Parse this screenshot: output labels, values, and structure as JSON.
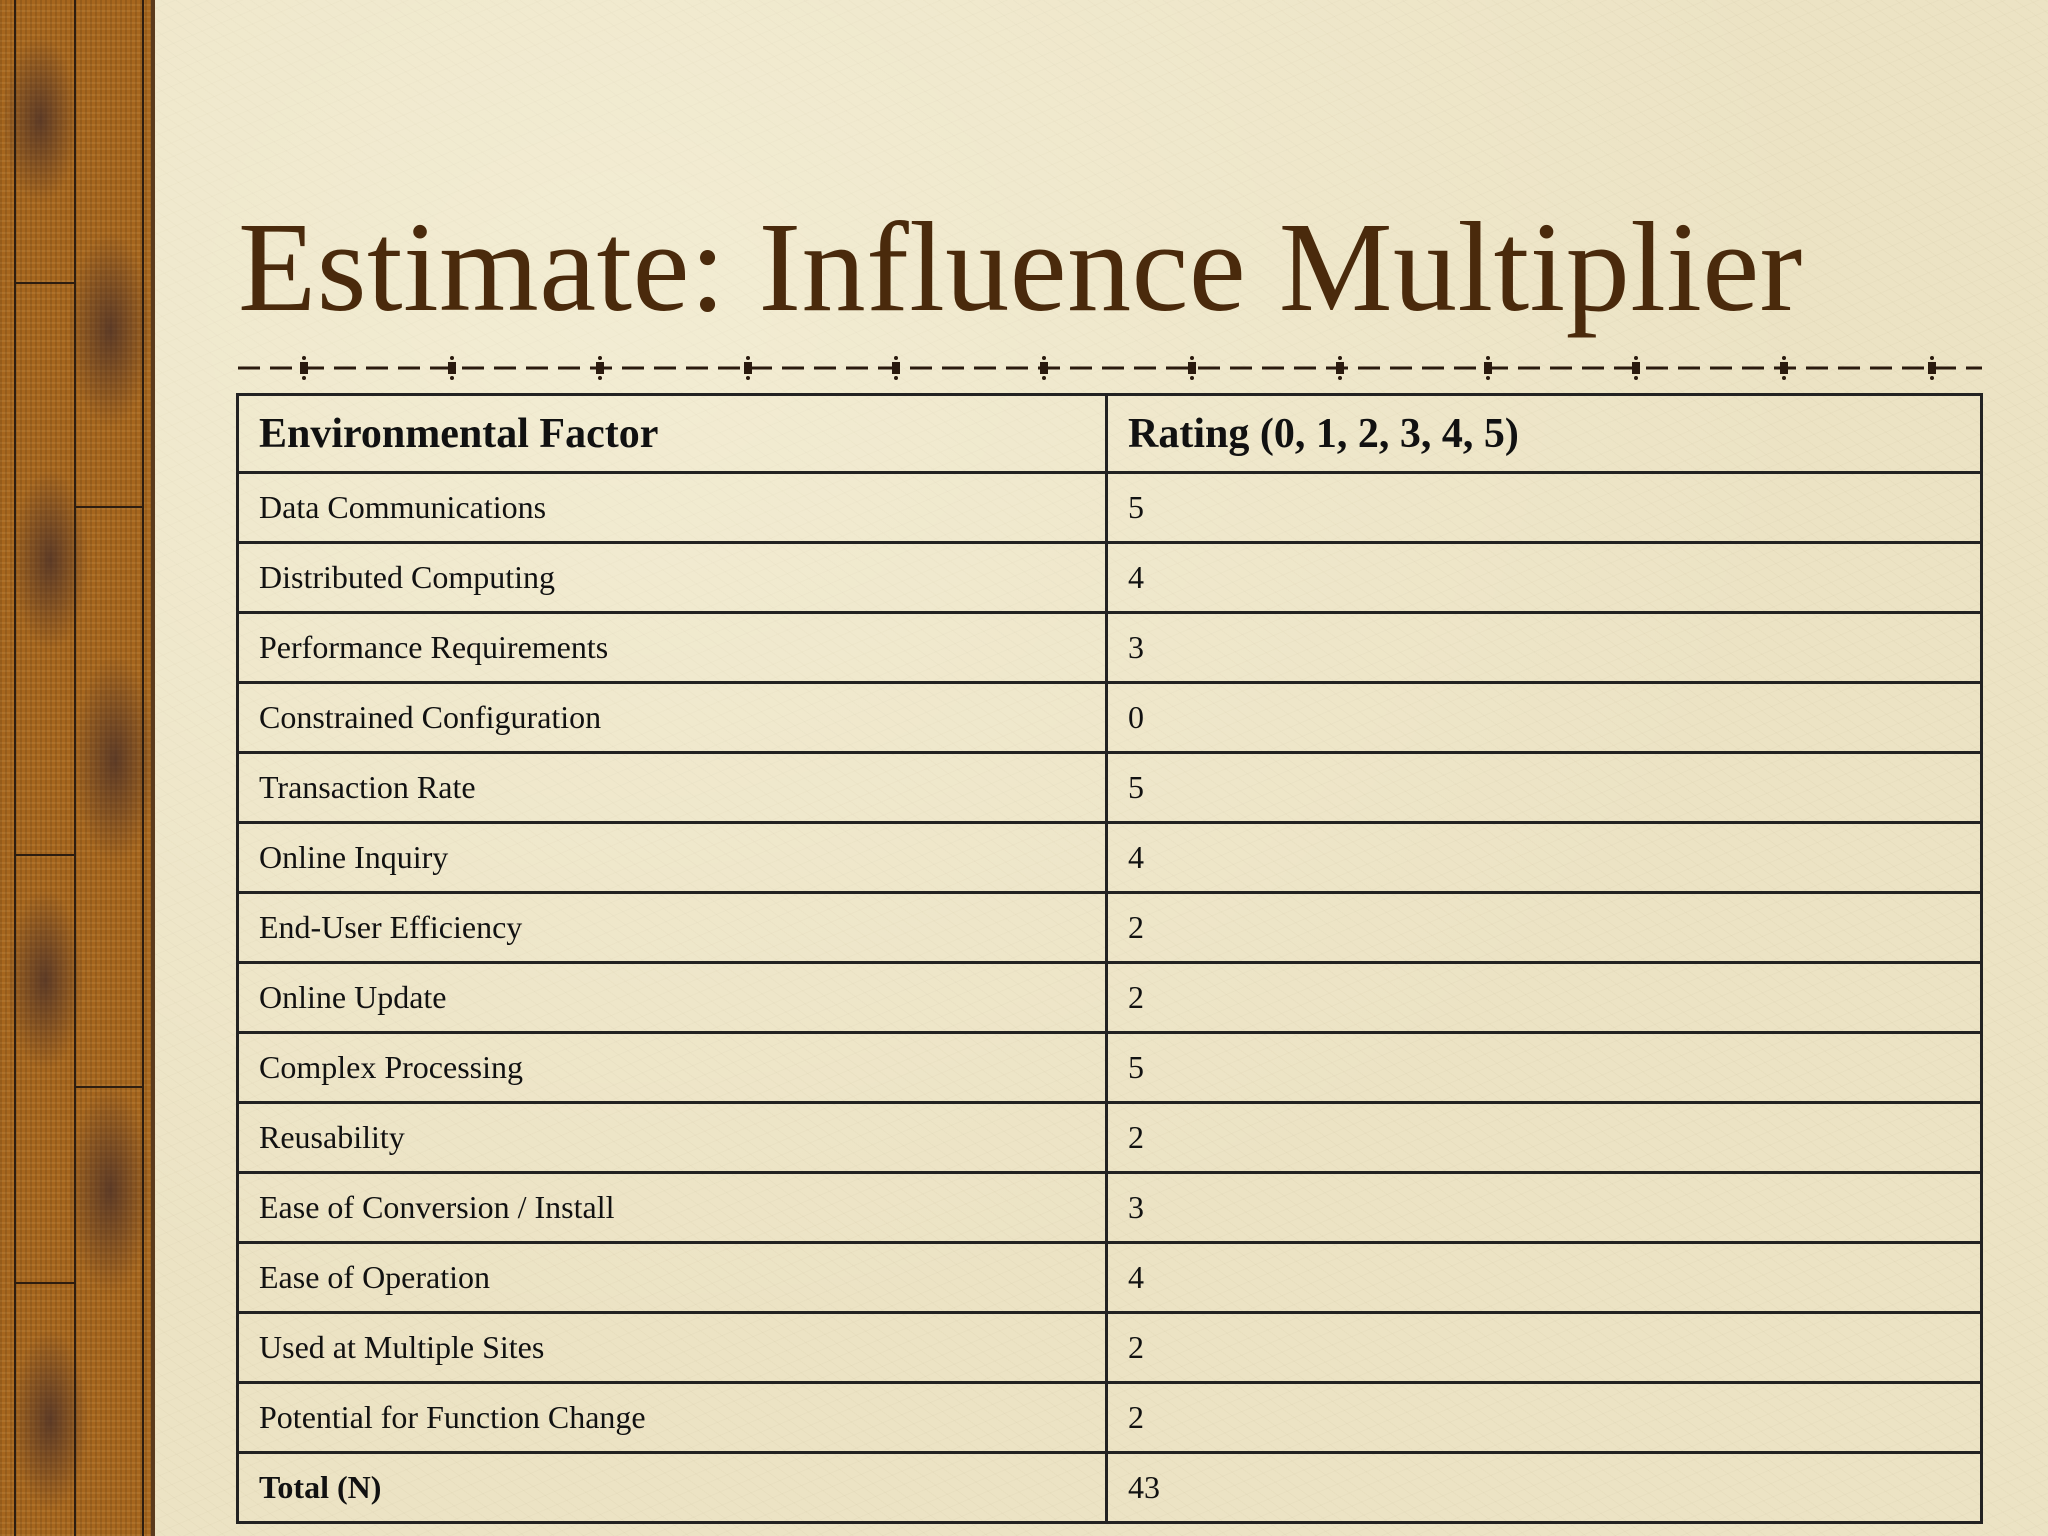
{
  "slide": {
    "title": "Estimate: Influence Multiplier"
  },
  "table": {
    "headers": [
      "Environmental Factor",
      "Rating (0, 1, 2, 3, 4, 5)"
    ],
    "rows": [
      {
        "factor": "Data Communications",
        "rating": "5"
      },
      {
        "factor": "Distributed Computing",
        "rating": "4"
      },
      {
        "factor": "Performance Requirements",
        "rating": "3"
      },
      {
        "factor": "Constrained Configuration",
        "rating": "0"
      },
      {
        "factor": "Transaction Rate",
        "rating": "5"
      },
      {
        "factor": "Online Inquiry",
        "rating": "4"
      },
      {
        "factor": "End-User Efficiency",
        "rating": "2"
      },
      {
        "factor": "Online Update",
        "rating": "2"
      },
      {
        "factor": "Complex Processing",
        "rating": "5"
      },
      {
        "factor": "Reusability",
        "rating": "2"
      },
      {
        "factor": "Ease of Conversion / Install",
        "rating": "3"
      },
      {
        "factor": "Ease of Operation",
        "rating": "4"
      },
      {
        "factor": "Used at Multiple Sites",
        "rating": "2"
      },
      {
        "factor": "Potential for Function Change",
        "rating": "2"
      }
    ],
    "total": {
      "label": "Total (N)",
      "value": "43"
    }
  },
  "colors": {
    "background": "#ece3c4",
    "title": "#4a2a0c",
    "side_strip": "#a6661e",
    "grid_lines": "#222222"
  }
}
